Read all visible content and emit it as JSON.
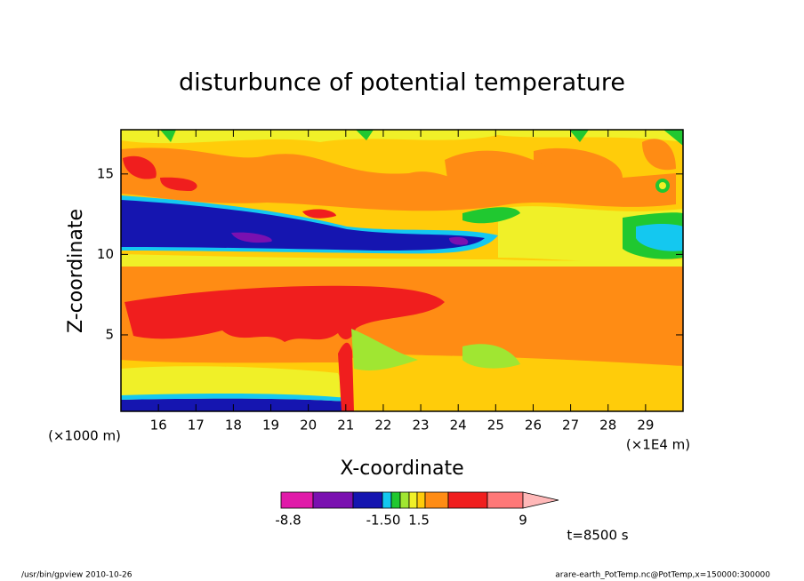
{
  "chart_data": {
    "type": "contour",
    "title": "disturbunce of potential temperature",
    "x_label": "X-coordinate",
    "y_label": "Z-coordinate",
    "x_unit": "(×1E4 m)",
    "y_unit": "(×1000 m)",
    "xlim": [
      15,
      30
    ],
    "xticks": [
      16,
      17,
      18,
      19,
      20,
      21,
      22,
      23,
      24,
      25,
      26,
      27,
      28,
      29
    ],
    "ylim": [
      0.25,
      17.75
    ],
    "yticks": [
      5,
      10,
      15
    ],
    "colorbar": {
      "colors": [
        "#e01aa9",
        "#7a10b0",
        "#1515b0",
        "#14c8f0",
        "#20c830",
        "#a0e632",
        "#f0f028",
        "#ffcc0a",
        "#ff8c14",
        "#f01e1e",
        "#ff7878"
      ],
      "extend_color": "#ffb8b8",
      "ticks": [
        -8.8,
        {
          "value": -1.5,
          "label": "-1.50"
        },
        1.5,
        9
      ]
    },
    "annotation": "t=8500 s",
    "footer_left": "/usr/bin/gpview   2010-10-26",
    "footer_right": "arare-earth_PotTemp.nc@PotTemp,x=150000:300000"
  }
}
